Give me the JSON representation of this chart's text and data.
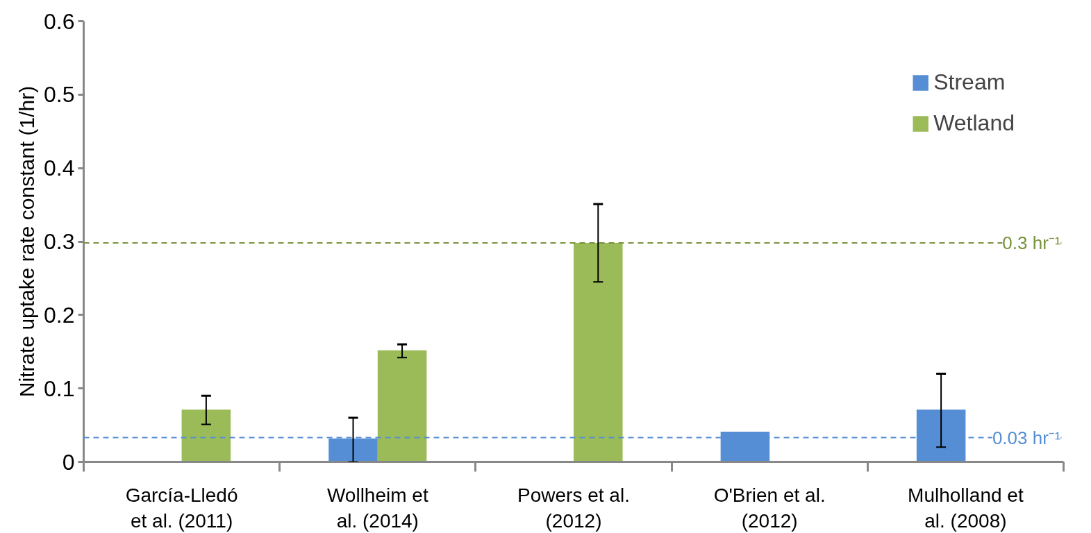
{
  "chart_data": {
    "type": "bar",
    "ylabel": "Nitrate uptake rate constant (1/hr)",
    "categories": [
      "García-Lledó et al. (2011)",
      "Wollheim et al. (2014)",
      "Powers et al. (2012)",
      "O'Brien et al. (2012)",
      "Mulholland et al. (2008)"
    ],
    "series": [
      {
        "name": "Stream",
        "color": "#558ed5",
        "values": [
          null,
          0.032,
          null,
          0.041,
          0.071
        ],
        "errors": [
          null,
          [
            0,
            0.06
          ],
          null,
          null,
          [
            0.02,
            0.12
          ]
        ]
      },
      {
        "name": "Wetland",
        "color": "#9bbb59",
        "values": [
          0.071,
          0.152,
          0.298,
          null,
          null
        ],
        "errors": [
          [
            0.051,
            0.09
          ],
          [
            0.142,
            0.16
          ],
          [
            0.245,
            0.351
          ],
          null,
          null
        ]
      }
    ],
    "ylim": [
      0,
      0.6
    ],
    "yticks": [
      0,
      0.1,
      0.2,
      0.3,
      0.4,
      0.5,
      0.6
    ],
    "ref_lines": [
      {
        "axis": "y",
        "value": 0.298,
        "label": "0.3 hr⁻¹",
        "color": "#77933c",
        "line_style": "dashed"
      },
      {
        "axis": "y",
        "value": 0.033,
        "label": "0.03 hr⁻¹",
        "color": "#558ed5",
        "line_style": "dashed"
      }
    ],
    "legend": "top right",
    "grid": false
  }
}
